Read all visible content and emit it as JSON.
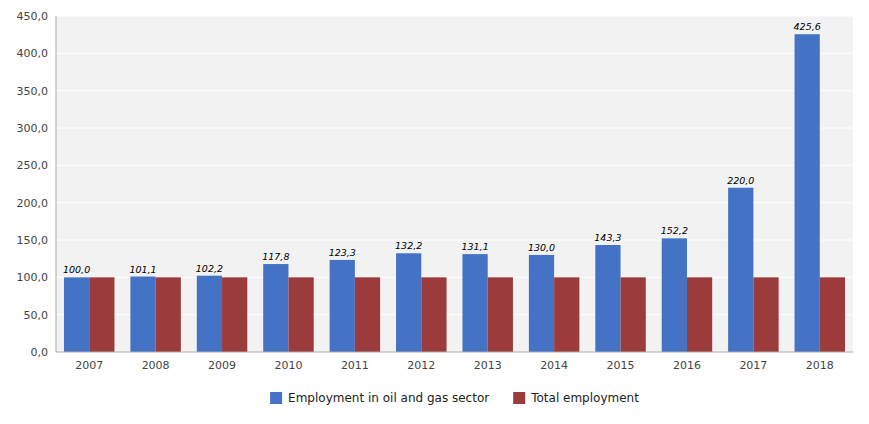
{
  "chart_data": {
    "type": "bar",
    "categories": [
      "2007",
      "2008",
      "2009",
      "2010",
      "2011",
      "2012",
      "2013",
      "2014",
      "2015",
      "2016",
      "2017",
      "2018"
    ],
    "series": [
      {
        "name": "Employment in oil and gas sector",
        "color": "#4472C4",
        "values": [
          100.0,
          101.1,
          102.2,
          117.8,
          123.3,
          132.2,
          131.1,
          130.0,
          143.3,
          152.2,
          220.0,
          425.6
        ],
        "value_labels": [
          "100,0",
          "101,1",
          "102,2",
          "117,8",
          "123,3",
          "132,2",
          "131,1",
          "130,0",
          "143,3",
          "152,2",
          "220,0",
          "425,6"
        ],
        "data_labels": true
      },
      {
        "name": "Total employment",
        "color": "#9B3B3B",
        "values": [
          100.0,
          100.0,
          100.0,
          100.0,
          100.0,
          100.0,
          100.0,
          100.0,
          100.0,
          100.0,
          100.0,
          100.0
        ]
      }
    ],
    "ylim": [
      0,
      450
    ],
    "yticks": [
      {
        "value": 0,
        "label": "0,0"
      },
      {
        "value": 50,
        "label": "50,0"
      },
      {
        "value": 100,
        "label": "100,0"
      },
      {
        "value": 150,
        "label": "150,0"
      },
      {
        "value": 200,
        "label": "200,0"
      },
      {
        "value": 250,
        "label": "250,0"
      },
      {
        "value": 300,
        "label": "300,0"
      },
      {
        "value": 350,
        "label": "350,0"
      },
      {
        "value": 400,
        "label": "400,0"
      },
      {
        "value": 450,
        "label": "450,0"
      }
    ],
    "grid": true,
    "legend": "bottom"
  }
}
